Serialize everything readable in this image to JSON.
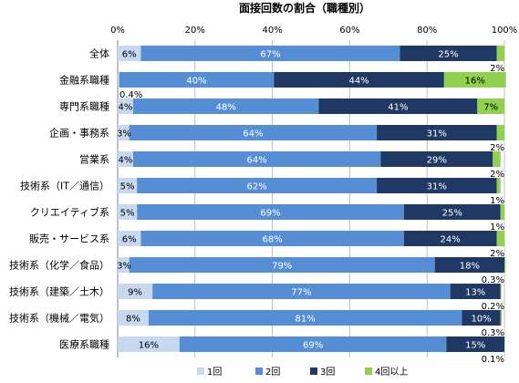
{
  "chart_data": {
    "type": "bar",
    "orientation": "horizontal",
    "stacked": true,
    "title": "面接回数の割合（職種別）",
    "xlim": [
      0,
      100
    ],
    "x_ticks": [
      "0%",
      "20%",
      "40%",
      "60%",
      "80%",
      "100%"
    ],
    "grid": true,
    "legend_position": "bottom",
    "categories": [
      "全体",
      "金融系職種",
      "専門系職種",
      "企画・事務系",
      "営業系",
      "技術系（IT／通信）",
      "クリエイティブ系",
      "販売・サービス系",
      "技術系（化学／食品）",
      "技術系（建築／土木）",
      "技術系（機械／電気）",
      "医療系職種"
    ],
    "series": [
      {
        "name": "1回",
        "color": "#c6d9f1",
        "values": [
          6,
          0.4,
          4,
          3,
          4,
          5,
          5,
          6,
          3,
          9,
          8,
          16
        ]
      },
      {
        "name": "2回",
        "color": "#558ed5",
        "values": [
          67,
          40,
          48,
          64,
          64,
          62,
          69,
          68,
          79,
          77,
          81,
          69
        ]
      },
      {
        "name": "3回",
        "color": "#1f3864",
        "values": [
          25,
          44,
          41,
          31,
          29,
          31,
          25,
          24,
          18,
          13,
          10,
          15
        ]
      },
      {
        "name": "4回以上",
        "color": "#92d050",
        "values": [
          2,
          16,
          7,
          2,
          2,
          1,
          1,
          2,
          0.3,
          0.2,
          0.3,
          0.1
        ]
      }
    ],
    "data_labels": [
      [
        "6%",
        "67%",
        "25%",
        "2%"
      ],
      [
        "0.4%",
        "40%",
        "44%",
        "16%"
      ],
      [
        "4%",
        "48%",
        "41%",
        "7%"
      ],
      [
        "3%",
        "64%",
        "31%",
        "2%"
      ],
      [
        "4%",
        "64%",
        "29%",
        "2%"
      ],
      [
        "5%",
        "62%",
        "31%",
        "1%"
      ],
      [
        "5%",
        "69%",
        "25%",
        "1%"
      ],
      [
        "6%",
        "68%",
        "24%",
        "2%"
      ],
      [
        "3%",
        "79%",
        "18%",
        "0.3%"
      ],
      [
        "9%",
        "77%",
        "13%",
        "0.2%"
      ],
      [
        "8%",
        "81%",
        "10%",
        "0.3%"
      ],
      [
        "16%",
        "69%",
        "15%",
        "0.1%"
      ]
    ]
  }
}
